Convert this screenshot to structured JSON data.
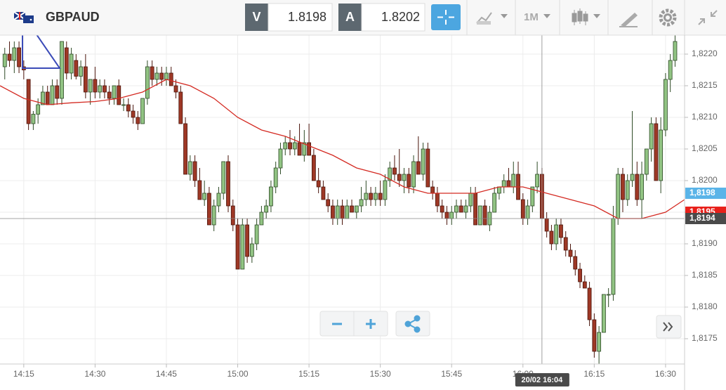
{
  "header": {
    "symbol": "GBPAUD",
    "bid": {
      "label": "V",
      "price": "1.8198"
    },
    "ask": {
      "label": "A",
      "price": "1.8202"
    },
    "timeframe": "1M"
  },
  "chart_data": {
    "type": "candlestick",
    "x": [
      "14:11",
      "14:12",
      "14:13",
      "14:14",
      "14:15",
      "14:16",
      "14:17",
      "14:18",
      "14:19",
      "14:20",
      "14:21",
      "14:22",
      "14:23",
      "14:24",
      "14:25",
      "14:26",
      "14:27",
      "14:28",
      "14:29",
      "14:30",
      "14:31",
      "14:32",
      "14:33",
      "14:34",
      "14:35",
      "14:36",
      "14:37",
      "14:38",
      "14:39",
      "14:40",
      "14:41",
      "14:42",
      "14:43",
      "14:44",
      "14:45",
      "14:46",
      "14:47",
      "14:48",
      "14:49",
      "14:50",
      "14:51",
      "14:52",
      "14:53",
      "14:54",
      "14:55",
      "14:56",
      "14:57",
      "14:58",
      "14:59",
      "15:00",
      "15:01",
      "15:02",
      "15:03",
      "15:04",
      "15:05",
      "15:06",
      "15:07",
      "15:08",
      "15:09",
      "15:10",
      "15:11",
      "15:12",
      "15:13",
      "15:14",
      "15:15",
      "15:16",
      "15:17",
      "15:18",
      "15:19",
      "15:20",
      "15:21",
      "15:22",
      "15:23",
      "15:24",
      "15:25",
      "15:26",
      "15:27",
      "15:28",
      "15:29",
      "15:30",
      "15:31",
      "15:32",
      "15:33",
      "15:34",
      "15:35",
      "15:36",
      "15:37",
      "15:38",
      "15:39",
      "15:40",
      "15:41",
      "15:42",
      "15:43",
      "15:44",
      "15:45",
      "15:46",
      "15:47",
      "15:48",
      "15:49",
      "15:50",
      "15:51",
      "15:52",
      "15:53",
      "15:54",
      "15:55",
      "15:56",
      "15:57",
      "15:58",
      "15:59",
      "16:00",
      "16:01",
      "16:02",
      "16:03",
      "16:04",
      "16:05",
      "16:06",
      "16:07",
      "16:08",
      "16:09",
      "16:10",
      "16:11",
      "16:12",
      "16:13",
      "16:14",
      "16:15",
      "16:16",
      "16:17",
      "16:18",
      "16:19",
      "16:20",
      "16:21",
      "16:22",
      "16:23",
      "16:24",
      "16:25",
      "16:26",
      "16:27",
      "16:28",
      "16:29",
      "16:30",
      "16:31",
      "16:32"
    ],
    "ohlc": [
      [
        1.8218,
        1.8221,
        1.8216,
        1.822
      ],
      [
        1.822,
        1.8222,
        1.8218,
        1.8219
      ],
      [
        1.8219,
        1.8222,
        1.8217,
        1.8221
      ],
      [
        1.8221,
        1.8222,
        1.8217,
        1.8218
      ],
      [
        1.8218,
        1.8219,
        1.8216,
        1.82175
      ],
      [
        1.8216,
        1.8216,
        1.8208,
        1.8209
      ],
      [
        1.8209,
        1.8211,
        1.8208,
        1.82105
      ],
      [
        1.82105,
        1.8213,
        1.8209,
        1.8212
      ],
      [
        1.8212,
        1.8215,
        1.8212,
        1.8214
      ],
      [
        1.8214,
        1.8215,
        1.8212,
        1.8212
      ],
      [
        1.8212,
        1.8216,
        1.8212,
        1.8215
      ],
      [
        1.8215,
        1.8216,
        1.8212,
        1.8213
      ],
      [
        1.8213,
        1.8222,
        1.8212,
        1.8222
      ],
      [
        1.8221,
        1.8222,
        1.8216,
        1.8217
      ],
      [
        1.8217,
        1.8221,
        1.8216,
        1.822
      ],
      [
        1.8219,
        1.822,
        1.8216,
        1.82165
      ],
      [
        1.82165,
        1.8219,
        1.8215,
        1.8218
      ],
      [
        1.8218,
        1.822,
        1.8213,
        1.8214
      ],
      [
        1.8214,
        1.8216,
        1.8212,
        1.8216
      ],
      [
        1.8216,
        1.8218,
        1.8213,
        1.8214
      ],
      [
        1.8214,
        1.8216,
        1.8213,
        1.8215
      ],
      [
        1.8215,
        1.8216,
        1.8213,
        1.8214
      ],
      [
        1.8214,
        1.8215,
        1.8212,
        1.8213
      ],
      [
        1.8213,
        1.8215,
        1.8212,
        1.8215
      ],
      [
        1.8215,
        1.8216,
        1.8212,
        1.8212
      ],
      [
        1.8212,
        1.8213,
        1.8211,
        1.8212
      ],
      [
        1.8212,
        1.8213,
        1.821,
        1.8211
      ],
      [
        1.8211,
        1.8212,
        1.8209,
        1.821
      ],
      [
        1.821,
        1.8211,
        1.8208,
        1.8209
      ],
      [
        1.8209,
        1.8213,
        1.8209,
        1.8213
      ],
      [
        1.8213,
        1.8219,
        1.8212,
        1.8218
      ],
      [
        1.8218,
        1.8219,
        1.8215,
        1.8216
      ],
      [
        1.8216,
        1.8218,
        1.8215,
        1.8217
      ],
      [
        1.8217,
        1.8218,
        1.8215,
        1.8216
      ],
      [
        1.8216,
        1.8218,
        1.8215,
        1.8217
      ],
      [
        1.8217,
        1.8218,
        1.8215,
        1.8215
      ],
      [
        1.8215,
        1.8216,
        1.8213,
        1.8214
      ],
      [
        1.8214,
        1.8215,
        1.8209,
        1.8209
      ],
      [
        1.8209,
        1.821,
        1.8201,
        1.8201
      ],
      [
        1.8201,
        1.8204,
        1.82,
        1.8203
      ],
      [
        1.8203,
        1.8204,
        1.8199,
        1.82
      ],
      [
        1.82,
        1.8202,
        1.8197,
        1.8197
      ],
      [
        1.8197,
        1.82,
        1.8196,
        1.8198
      ],
      [
        1.8198,
        1.8199,
        1.8193,
        1.8193
      ],
      [
        1.8193,
        1.8197,
        1.8192,
        1.8196
      ],
      [
        1.8196,
        1.8199,
        1.8195,
        1.8198
      ],
      [
        1.8198,
        1.8203,
        1.8197,
        1.8203
      ],
      [
        1.8203,
        1.8204,
        1.8195,
        1.8196
      ],
      [
        1.8196,
        1.8197,
        1.8192,
        1.8193
      ],
      [
        1.8193,
        1.8194,
        1.8186,
        1.8186
      ],
      [
        1.8186,
        1.8194,
        1.8186,
        1.8193
      ],
      [
        1.8193,
        1.8194,
        1.8187,
        1.8188
      ],
      [
        1.8188,
        1.8191,
        1.8187,
        1.819
      ],
      [
        1.819,
        1.8194,
        1.8189,
        1.8193
      ],
      [
        1.8193,
        1.8196,
        1.8193,
        1.8195
      ],
      [
        1.8195,
        1.8197,
        1.8194,
        1.8196
      ],
      [
        1.8196,
        1.82,
        1.8195,
        1.8199
      ],
      [
        1.8199,
        1.8203,
        1.8198,
        1.8202
      ],
      [
        1.8202,
        1.8206,
        1.8201,
        1.8205
      ],
      [
        1.8205,
        1.8207,
        1.8204,
        1.8206
      ],
      [
        1.8206,
        1.8208,
        1.8204,
        1.8205
      ],
      [
        1.8205,
        1.8207,
        1.8204,
        1.8206
      ],
      [
        1.8206,
        1.8209,
        1.8204,
        1.8204
      ],
      [
        1.8204,
        1.8208,
        1.8203,
        1.8206
      ],
      [
        1.8206,
        1.8209,
        1.8204,
        1.8204
      ],
      [
        1.8204,
        1.8205,
        1.82,
        1.82
      ],
      [
        1.82,
        1.8202,
        1.8198,
        1.8199
      ],
      [
        1.8199,
        1.82,
        1.8197,
        1.8197
      ],
      [
        1.8197,
        1.8198,
        1.8195,
        1.8196
      ],
      [
        1.8196,
        1.8197,
        1.8193,
        1.8194
      ],
      [
        1.8194,
        1.8197,
        1.8193,
        1.8196
      ],
      [
        1.8196,
        1.8197,
        1.8193,
        1.8194
      ],
      [
        1.8194,
        1.8197,
        1.8194,
        1.8196
      ],
      [
        1.8196,
        1.8197,
        1.8195,
        1.8195
      ],
      [
        1.8195,
        1.8196,
        1.8194,
        1.8196
      ],
      [
        1.8196,
        1.8199,
        1.8195,
        1.8197
      ],
      [
        1.8197,
        1.82,
        1.8196,
        1.8198
      ],
      [
        1.8198,
        1.8199,
        1.8196,
        1.8197
      ],
      [
        1.8197,
        1.8199,
        1.8196,
        1.8198
      ],
      [
        1.8198,
        1.82,
        1.8196,
        1.8197
      ],
      [
        1.8197,
        1.8201,
        1.8196,
        1.82
      ],
      [
        1.82,
        1.8203,
        1.8199,
        1.8202
      ],
      [
        1.8202,
        1.8204,
        1.82,
        1.8201
      ],
      [
        1.8201,
        1.8205,
        1.8199,
        1.82
      ],
      [
        1.82,
        1.8202,
        1.8198,
        1.8201
      ],
      [
        1.8201,
        1.8202,
        1.8198,
        1.8199
      ],
      [
        1.8199,
        1.8204,
        1.8198,
        1.8203
      ],
      [
        1.8203,
        1.8207,
        1.8201,
        1.8201
      ],
      [
        1.8201,
        1.8206,
        1.82,
        1.8205
      ],
      [
        1.8205,
        1.8206,
        1.8199,
        1.8199
      ],
      [
        1.8199,
        1.82,
        1.8197,
        1.8198
      ],
      [
        1.8198,
        1.8199,
        1.8195,
        1.8196
      ],
      [
        1.8196,
        1.8197,
        1.8194,
        1.8195
      ],
      [
        1.8195,
        1.8196,
        1.8193,
        1.8194
      ],
      [
        1.8194,
        1.8196,
        1.8193,
        1.8195
      ],
      [
        1.8195,
        1.8197,
        1.8194,
        1.8196
      ],
      [
        1.8196,
        1.8197,
        1.8195,
        1.8195
      ],
      [
        1.8195,
        1.8197,
        1.8194,
        1.8196
      ],
      [
        1.8196,
        1.8199,
        1.8195,
        1.8198
      ],
      [
        1.8198,
        1.8199,
        1.8193,
        1.8193
      ],
      [
        1.8193,
        1.8196,
        1.8193,
        1.8196
      ],
      [
        1.8196,
        1.8197,
        1.8193,
        1.8193
      ],
      [
        1.8193,
        1.8196,
        1.8192,
        1.8195
      ],
      [
        1.8195,
        1.8199,
        1.8195,
        1.8198
      ],
      [
        1.8198,
        1.8199,
        1.8197,
        1.8199
      ],
      [
        1.8199,
        1.8201,
        1.8198,
        1.82
      ],
      [
        1.82,
        1.8202,
        1.8199,
        1.8199
      ],
      [
        1.8199,
        1.8203,
        1.8198,
        1.8201
      ],
      [
        1.8201,
        1.8203,
        1.8197,
        1.8197
      ],
      [
        1.8197,
        1.8198,
        1.8193,
        1.8194
      ],
      [
        1.8194,
        1.8197,
        1.8193,
        1.8196
      ],
      [
        1.8196,
        1.8199,
        1.8195,
        1.8199
      ],
      [
        1.8199,
        1.8203,
        1.8198,
        1.8201
      ],
      [
        1.8201,
        1.8202,
        1.8194,
        1.8194
      ],
      [
        1.8194,
        1.8195,
        1.8191,
        1.8192
      ],
      [
        1.8192,
        1.8193,
        1.8189,
        1.819
      ],
      [
        1.819,
        1.8194,
        1.8189,
        1.8193
      ],
      [
        1.8193,
        1.8194,
        1.819,
        1.8191
      ],
      [
        1.8191,
        1.8192,
        1.8188,
        1.8189
      ],
      [
        1.8189,
        1.819,
        1.8187,
        1.8188
      ],
      [
        1.8188,
        1.8189,
        1.8185,
        1.8186
      ],
      [
        1.8186,
        1.8187,
        1.8183,
        1.8184
      ],
      [
        1.8184,
        1.8185,
        1.8183,
        1.8183
      ],
      [
        1.8183,
        1.8184,
        1.8177,
        1.8178
      ],
      [
        1.8178,
        1.8179,
        1.8172,
        1.8173
      ],
      [
        1.8173,
        1.8177,
        1.8171,
        1.8176
      ],
      [
        1.8176,
        1.8182,
        1.8176,
        1.8182
      ],
      [
        1.8182,
        1.8183,
        1.818,
        1.8182
      ],
      [
        1.8182,
        1.8196,
        1.8181,
        1.8194
      ],
      [
        1.8194,
        1.8202,
        1.8193,
        1.8201
      ],
      [
        1.8201,
        1.8202,
        1.8195,
        1.8197
      ],
      [
        1.8197,
        1.8201,
        1.8196,
        1.82
      ],
      [
        1.82,
        1.8211,
        1.8199,
        1.8201
      ],
      [
        1.8201,
        1.8203,
        1.8196,
        1.8197
      ],
      [
        1.8197,
        1.8203,
        1.8194,
        1.8201
      ],
      [
        1.8201,
        1.8205,
        1.82,
        1.8205
      ],
      [
        1.8205,
        1.821,
        1.8203,
        1.8209
      ],
      [
        1.8209,
        1.821,
        1.82,
        1.82
      ],
      [
        1.82,
        1.821,
        1.8198,
        1.8208
      ],
      [
        1.8208,
        1.8217,
        1.8207,
        1.8216
      ],
      [
        1.8216,
        1.822,
        1.8214,
        1.8219
      ],
      [
        1.8219,
        1.8223,
        1.8218,
        1.8222
      ]
    ],
    "up_color": "#91c383",
    "down_color": "#9e3826",
    "ma": {
      "color": "#d42a22",
      "x": [
        "14:10",
        "14:15",
        "14:20",
        "14:25",
        "14:30",
        "14:35",
        "14:40",
        "14:45",
        "14:50",
        "14:55",
        "15:00",
        "15:05",
        "15:10",
        "15:15",
        "15:20",
        "15:25",
        "15:30",
        "15:35",
        "15:40",
        "15:45",
        "15:50",
        "15:55",
        "16:00",
        "16:05",
        "16:10",
        "16:15",
        "16:20",
        "16:25",
        "16:30",
        "16:34"
      ],
      "values": [
        1.8215,
        1.8213,
        1.8212,
        1.82123,
        1.82125,
        1.8213,
        1.8214,
        1.8216,
        1.8215,
        1.8213,
        1.821,
        1.8208,
        1.8207,
        1.82055,
        1.8204,
        1.8202,
        1.8201,
        1.8199,
        1.8198,
        1.8198,
        1.8198,
        1.8199,
        1.8199,
        1.8198,
        1.8197,
        1.8196,
        1.8194,
        1.8194,
        1.8195,
        1.8197
      ]
    },
    "xlim": [
      "14:10",
      "16:34"
    ],
    "ylim": [
      1.8171,
      1.8223
    ],
    "xticks": [
      "14:15",
      "14:30",
      "14:45",
      "15:00",
      "15:15",
      "15:30",
      "15:45",
      "16:00",
      "16:15",
      "16:30"
    ],
    "yticks": [
      {
        "value": 1.8175,
        "label": "1,8175"
      },
      {
        "value": 1.818,
        "label": "1,8180"
      },
      {
        "value": 1.8185,
        "label": "1,8185"
      },
      {
        "value": 1.819,
        "label": "1,8190"
      },
      {
        "value": 1.8195,
        "label": "1,8195"
      },
      {
        "value": 1.82,
        "label": "1,8200"
      },
      {
        "value": 1.8205,
        "label": "1,8205"
      },
      {
        "value": 1.821,
        "label": "1,8210"
      },
      {
        "value": 1.8215,
        "label": "1,8215"
      },
      {
        "value": 1.822,
        "label": "1,8220"
      }
    ],
    "grid": true,
    "price_markers": [
      {
        "value": 1.8198,
        "label": "1,8198",
        "color": "#5ab4e8"
      },
      {
        "value": 1.8195,
        "label": "1,8195",
        "color": "#e8201a"
      },
      {
        "value": 1.8194,
        "label": "1,8194",
        "color": "#4a4a4a"
      }
    ],
    "crosshair": {
      "x": "16:04",
      "label": "20/02 16:04"
    }
  }
}
